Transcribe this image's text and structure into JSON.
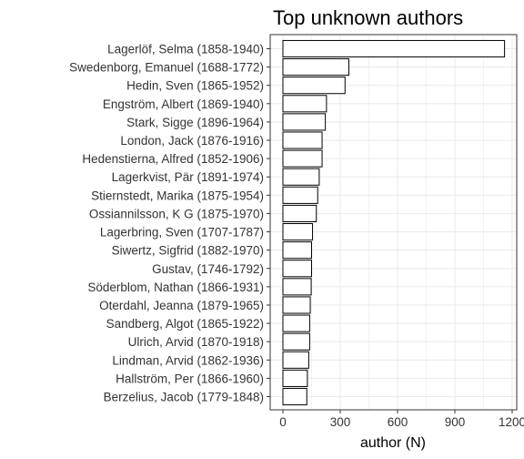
{
  "chart_data": {
    "type": "bar",
    "orientation": "horizontal",
    "title": "Top unknown authors",
    "xlabel": "author (N)",
    "ylabel": "",
    "xlim": [
      0,
      1200
    ],
    "xticks": [
      0,
      300,
      600,
      900,
      1200
    ],
    "xtick_labels": [
      "0",
      "300",
      "600",
      "900",
      "1200"
    ],
    "grid": true,
    "categories": [
      "Lagerlöf, Selma (1858-1940)",
      "Swedenborg, Emanuel (1688-1772)",
      "Hedin, Sven (1865-1952)",
      "Engström, Albert (1869-1940)",
      "Stark, Sigge (1896-1964)",
      "London, Jack (1876-1916)",
      "Hedenstierna, Alfred (1852-1906)",
      "Lagerkvist, Pär (1891-1974)",
      "Stiernstedt, Marika (1875-1954)",
      "Ossiannilsson, K G (1875-1970)",
      "Lagerbring, Sven (1707-1787)",
      "Siwertz, Sigfrid (1882-1970)",
      "Gustav,  (1746-1792)",
      "Söderblom, Nathan (1866-1931)",
      "Oterdahl, Jeanna (1879-1965)",
      "Sandberg, Algot (1865-1922)",
      "Ulrich, Arvid (1870-1918)",
      "Lindman, Arvid (1862-1936)",
      "Hallström, Per (1866-1960)",
      "Berzelius, Jacob (1779-1848)"
    ],
    "values": [
      1160,
      345,
      325,
      228,
      222,
      205,
      205,
      190,
      182,
      175,
      155,
      150,
      150,
      148,
      143,
      140,
      140,
      135,
      128,
      125
    ],
    "colors": {
      "bar_fill": "#ffffff",
      "bar_stroke": "#000000",
      "grid": "#ebebeb",
      "panel_border": "#333333",
      "text": "#333333"
    }
  }
}
